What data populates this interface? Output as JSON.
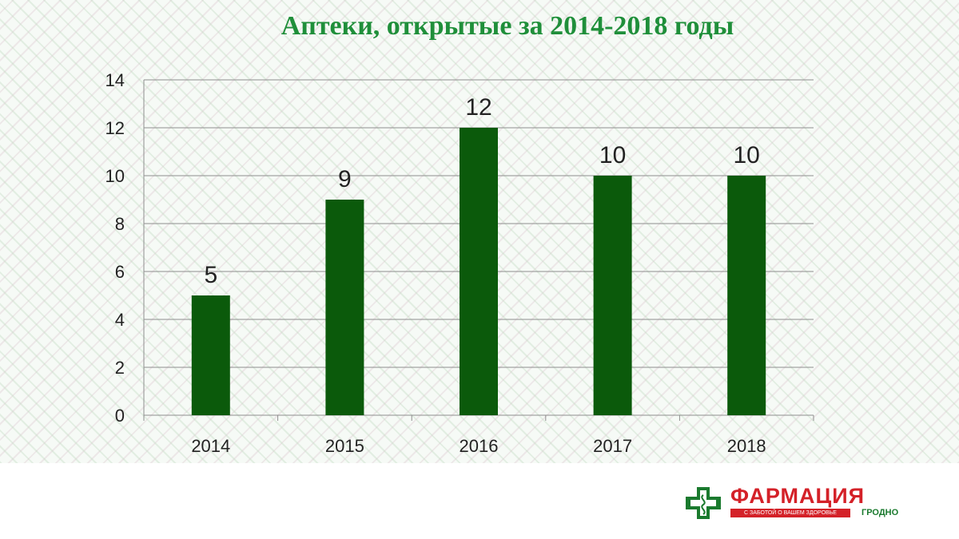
{
  "chart_data": {
    "type": "bar",
    "title": "Аптеки, открытые за 2014-2018 годы",
    "categories": [
      "2014",
      "2015",
      "2016",
      "2017",
      "2018"
    ],
    "values": [
      5,
      9,
      12,
      10,
      10
    ],
    "data_labels": [
      "5",
      "9",
      "12",
      "10",
      "10"
    ],
    "ylim": [
      0,
      14
    ],
    "yticks": [
      "0",
      "2",
      "4",
      "6",
      "8",
      "10",
      "12",
      "14"
    ],
    "xlabel": "",
    "ylabel": "",
    "grid": true,
    "bar_color": "#0b5a0b",
    "title_color": "#1f8f3a"
  },
  "logo": {
    "name": "ФАРМАЦИЯ",
    "tagline": "С ЗАБОТОЙ О ВАШЕМ ЗДОРОВЬЕ",
    "city": "ГРОДНО",
    "icon": "pharmacy-cross-icon",
    "brand_red": "#d42128",
    "brand_green": "#1a7a2e"
  }
}
